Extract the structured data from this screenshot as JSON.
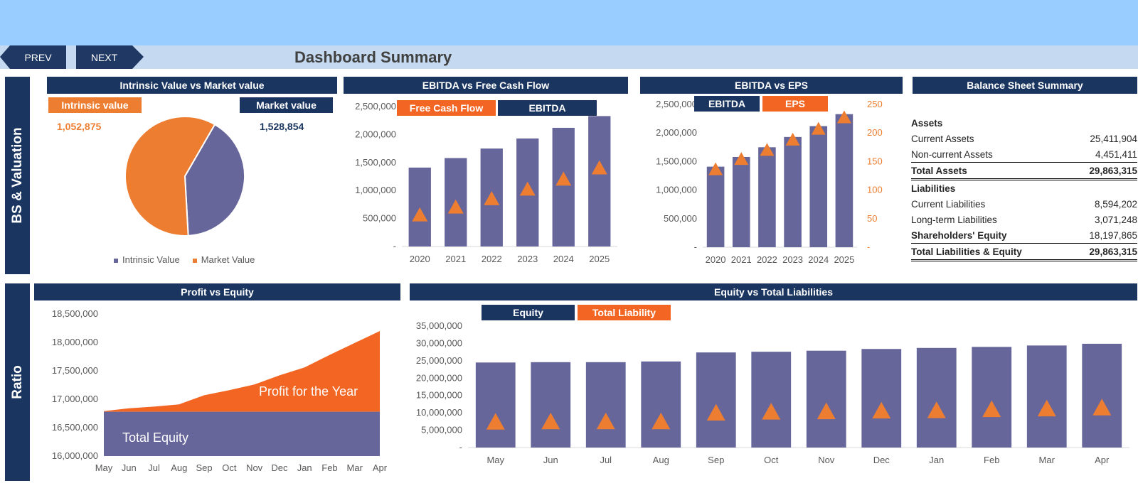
{
  "nav": {
    "prev_label": "PREV",
    "next_label": "NEXT"
  },
  "title": "Dashboard Summary",
  "sections": {
    "top": "BS & Valuation",
    "bottom": "Ratio"
  },
  "colors": {
    "navy": "#1a3560",
    "orange": "#ed7d31",
    "bright_orange": "#f26522",
    "purple": "#67669b",
    "sky": "#99ccff"
  },
  "pie": {
    "header": "Intrinsic Value vs Market value",
    "tag_intrinsic": "Intrinsic value",
    "tag_market": "Market value",
    "intrinsic_value_text": "1,052,875",
    "market_value_text": "1,528,854",
    "legend": [
      "Intrinsic Value",
      "Market Value"
    ]
  },
  "ebitda_fcf": {
    "header": "EBITDA vs Free Cash Flow",
    "tag_fcf": "Free Cash Flow",
    "tag_ebitda": "EBITDA"
  },
  "ebitda_eps": {
    "header": "EBITDA vs EPS",
    "tag_ebitda": "EBITDA",
    "tag_eps": "EPS"
  },
  "profit_equity": {
    "header": "Profit vs Equity",
    "label_profit": "Profit for the Year",
    "label_equity": "Total Equity"
  },
  "equity_liab": {
    "header": "Equity vs Total Liabilities",
    "tag_equity": "Equity",
    "tag_liab": "Total Liability"
  },
  "balance_sheet": {
    "header": "Balance Sheet Summary",
    "assets_label": "Assets",
    "current_assets_label": "Current Assets",
    "current_assets": "25,411,904",
    "noncurrent_assets_label": "Non-current Assets",
    "noncurrent_assets": "4,451,411",
    "total_assets_label": "Total Assets",
    "total_assets": "29,863,315",
    "liabilities_label": "Liabilities",
    "current_liab_label": "Current Liabilities",
    "current_liab": "8,594,202",
    "lt_liab_label": "Long-term Liabilities",
    "lt_liab": "3,071,248",
    "sh_equity_label": "Shareholders' Equity",
    "sh_equity": "18,197,865",
    "total_le_label": "Total Liabilities & Equity",
    "total_le": "29,863,315"
  },
  "chart_data": [
    {
      "type": "pie",
      "title": "Intrinsic Value vs Market value",
      "categories": [
        "Intrinsic Value",
        "Market Value"
      ],
      "values": [
        1052875,
        1528854
      ],
      "colors": [
        "#67669b",
        "#ed7d31"
      ]
    },
    {
      "type": "bar",
      "title": "EBITDA vs Free Cash Flow",
      "categories": [
        "2020",
        "2021",
        "2022",
        "2023",
        "2024",
        "2025"
      ],
      "series": [
        {
          "name": "EBITDA",
          "type": "bar",
          "values": [
            1410000,
            1580000,
            1750000,
            1930000,
            2120000,
            2330000
          ]
        },
        {
          "name": "Free Cash Flow",
          "type": "marker",
          "values": [
            560000,
            700000,
            850000,
            1020000,
            1200000,
            1400000
          ]
        }
      ],
      "ylim": [
        0,
        2500000
      ],
      "yticks": [
        "-",
        "500,000",
        "1,000,000",
        "1,500,000",
        "2,000,000",
        "2,500,000"
      ]
    },
    {
      "type": "bar",
      "title": "EBITDA vs EPS",
      "categories": [
        "2020",
        "2021",
        "2022",
        "2023",
        "2024",
        "2025"
      ],
      "series": [
        {
          "name": "EBITDA",
          "type": "bar",
          "axis": "left",
          "values": [
            1410000,
            1580000,
            1750000,
            1930000,
            2120000,
            2330000
          ]
        },
        {
          "name": "EPS",
          "type": "marker",
          "axis": "right",
          "values": [
            136,
            154,
            170,
            188,
            207,
            227
          ]
        }
      ],
      "ylim": [
        0,
        2500000
      ],
      "y2lim": [
        0,
        250
      ],
      "yticks": [
        "-",
        "500,000",
        "1,000,000",
        "1,500,000",
        "2,000,000",
        "2,500,000"
      ],
      "y2ticks": [
        "-",
        "50",
        "100",
        "150",
        "200",
        "250"
      ]
    },
    {
      "type": "area",
      "title": "Profit vs Equity",
      "categories": [
        "May",
        "Jun",
        "Jul",
        "Aug",
        "Sep",
        "Oct",
        "Nov",
        "Dec",
        "Jan",
        "Feb",
        "Mar",
        "Apr"
      ],
      "series": [
        {
          "name": "Total Equity",
          "values": [
            16780000,
            16780000,
            16780000,
            16780000,
            16780000,
            16780000,
            16780000,
            16780000,
            16780000,
            16780000,
            16780000,
            16780000
          ]
        },
        {
          "name": "Profit for the Year",
          "values": [
            16790000,
            16840000,
            16870000,
            16910000,
            17070000,
            17160000,
            17260000,
            17420000,
            17560000,
            17780000,
            17990000,
            18200000
          ]
        }
      ],
      "ylim": [
        16000000,
        18500000
      ],
      "yticks": [
        "16,000,000",
        "16,500,000",
        "17,000,000",
        "17,500,000",
        "18,000,000",
        "18,500,000"
      ]
    },
    {
      "type": "bar",
      "title": "Equity vs Total Liabilities",
      "categories": [
        "May",
        "Jun",
        "Jul",
        "Aug",
        "Sep",
        "Oct",
        "Nov",
        "Dec",
        "Jan",
        "Feb",
        "Mar",
        "Apr"
      ],
      "series": [
        {
          "name": "Equity",
          "type": "bar",
          "values": [
            24500000,
            24600000,
            24600000,
            24800000,
            27400000,
            27600000,
            27900000,
            28400000,
            28700000,
            29000000,
            29400000,
            29900000
          ]
        },
        {
          "name": "Total Liability",
          "type": "marker",
          "values": [
            7300000,
            7400000,
            7400000,
            7400000,
            9900000,
            10200000,
            10300000,
            10500000,
            10600000,
            10900000,
            11100000,
            11400000
          ]
        }
      ],
      "ylim": [
        0,
        35000000
      ],
      "yticks": [
        "-",
        "5,000,000",
        "10,000,000",
        "15,000,000",
        "20,000,000",
        "25,000,000",
        "30,000,000",
        "35,000,000"
      ]
    }
  ]
}
